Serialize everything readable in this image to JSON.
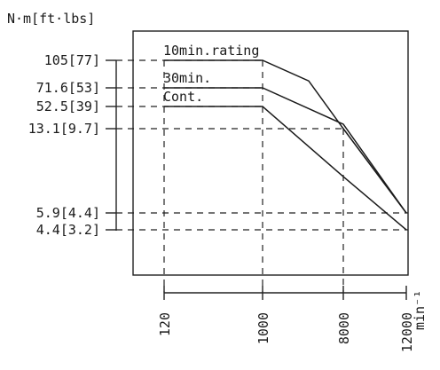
{
  "chart_data": {
    "type": "line",
    "title": "",
    "ylabel": "N·m[ft·lbs]",
    "xlabel": "min⁻¹",
    "x_ticks": [
      {
        "label": "120",
        "value": 120
      },
      {
        "label": "1000",
        "value": 1000
      },
      {
        "label": "8000",
        "value": 8000
      },
      {
        "label": "12000",
        "value": 12000
      }
    ],
    "y_ticks": [
      {
        "label": "105[77]",
        "value": 105
      },
      {
        "label": "71.6[53]",
        "value": 71.6
      },
      {
        "label": "52.5[39]",
        "value": 52.5
      },
      {
        "label": "13.1[9.7]",
        "value": 13.1
      },
      {
        "label": "5.9[4.4]",
        "value": 5.9
      },
      {
        "label": "4.4[3.2]",
        "value": 4.4
      }
    ],
    "series": [
      {
        "name": "10min.rating",
        "points": [
          {
            "x": 120,
            "y": 105
          },
          {
            "x": 1000,
            "y": 105
          },
          {
            "x": 5000,
            "y": 80
          },
          {
            "x": 8000,
            "y": 13.1
          },
          {
            "x": 12000,
            "y": 5.9
          }
        ]
      },
      {
        "name": "30min.",
        "points": [
          {
            "x": 120,
            "y": 71.6
          },
          {
            "x": 1000,
            "y": 71.6
          },
          {
            "x": 8000,
            "y": 21
          },
          {
            "x": 12000,
            "y": 5.9
          }
        ]
      },
      {
        "name": "Cont.",
        "points": [
          {
            "x": 120,
            "y": 52.5
          },
          {
            "x": 1000,
            "y": 52.5
          },
          {
            "x": 8000,
            "y": 9
          },
          {
            "x": 12000,
            "y": 4.4
          }
        ]
      }
    ],
    "grid": "dashed reference lines at tick values",
    "legend": "inline labels above each curve"
  }
}
